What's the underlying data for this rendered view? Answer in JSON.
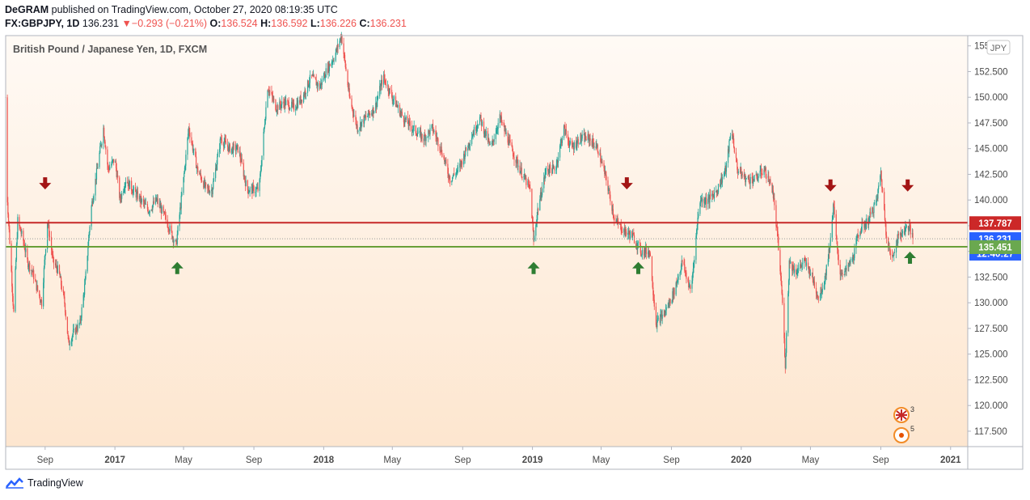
{
  "header": {
    "author": "DeGRAM",
    "published": " published on TradingView.com, October 27, 2020 08:19:35 UTC"
  },
  "quote": {
    "symbol": "FX:GBPJPY, 1D",
    "last": "136.231",
    "change_arrow": "▼",
    "change": "−0.293 (−0.21%)",
    "o_label": "O:",
    "o": "136.524",
    "h_label": "H:",
    "h": "136.592",
    "l_label": "L:",
    "l": "136.226",
    "c_label": "C:",
    "c": "136.231"
  },
  "footer": {
    "brand": "TradingView"
  },
  "chart_data": {
    "type": "candlestick",
    "title": "British Pound / Japanese Yen, 1D, FXCM",
    "currency_badge": "JPY",
    "ylim": [
      116,
      156
    ],
    "y_ticks": [
      117.5,
      120,
      122.5,
      125,
      127.5,
      130,
      132.5,
      135,
      137.5,
      140,
      142.5,
      145,
      147.5,
      150,
      152.5,
      155
    ],
    "y_tick_labels": [
      "117.500",
      "120.000",
      "122.500",
      "125.000",
      "127.500",
      "130.000",
      "132.500",
      "135.000",
      "137.500",
      "140.000",
      "142.500",
      "145.000",
      "147.500",
      "150.000",
      "152.500",
      "155.000"
    ],
    "x_tick_labels": [
      "Sep",
      "2017",
      "May",
      "Sep",
      "2018",
      "May",
      "Sep",
      "2019",
      "May",
      "Sep",
      "2020",
      "May",
      "Sep",
      "2021"
    ],
    "x_range": [
      "2016-06-24",
      "2021-01-31"
    ],
    "x_tick_dates": [
      "2016-09-01",
      "2017-01-01",
      "2017-05-01",
      "2017-09-01",
      "2018-01-01",
      "2018-05-01",
      "2018-09-01",
      "2019-01-01",
      "2019-05-01",
      "2019-09-01",
      "2020-01-01",
      "2020-05-01",
      "2020-09-01",
      "2021-01-01"
    ],
    "price_path": [
      [
        "2016-06-24",
        150
      ],
      [
        "2016-06-27",
        140
      ],
      [
        "2016-07-05",
        132
      ],
      [
        "2016-07-08",
        129
      ],
      [
        "2016-07-15",
        138
      ],
      [
        "2016-07-25",
        136
      ],
      [
        "2016-08-01",
        134
      ],
      [
        "2016-08-10",
        133
      ],
      [
        "2016-08-20",
        131
      ],
      [
        "2016-08-26",
        130
      ],
      [
        "2016-09-05",
        138
      ],
      [
        "2016-09-15",
        134
      ],
      [
        "2016-09-25",
        133
      ],
      [
        "2016-10-05",
        130
      ],
      [
        "2016-10-12",
        126
      ],
      [
        "2016-10-20",
        127
      ],
      [
        "2016-11-01",
        128
      ],
      [
        "2016-11-10",
        132
      ],
      [
        "2016-11-20",
        139
      ],
      [
        "2016-12-01",
        143
      ],
      [
        "2016-12-12",
        147
      ],
      [
        "2016-12-20",
        143
      ],
      [
        "2017-01-01",
        144
      ],
      [
        "2017-01-10",
        140
      ],
      [
        "2017-01-20",
        142
      ],
      [
        "2017-02-01",
        141
      ],
      [
        "2017-02-15",
        140
      ],
      [
        "2017-03-01",
        139
      ],
      [
        "2017-03-15",
        140
      ],
      [
        "2017-04-01",
        138
      ],
      [
        "2017-04-18",
        135.6
      ],
      [
        "2017-05-01",
        142
      ],
      [
        "2017-05-10",
        147
      ],
      [
        "2017-05-25",
        143
      ],
      [
        "2017-06-10",
        141
      ],
      [
        "2017-06-20",
        141
      ],
      [
        "2017-07-05",
        146
      ],
      [
        "2017-07-20",
        145
      ],
      [
        "2017-08-05",
        145
      ],
      [
        "2017-08-20",
        141
      ],
      [
        "2017-09-10",
        141
      ],
      [
        "2017-09-25",
        151
      ],
      [
        "2017-10-10",
        149
      ],
      [
        "2017-10-25",
        149.5
      ],
      [
        "2017-11-10",
        149
      ],
      [
        "2017-11-25",
        150
      ],
      [
        "2017-12-10",
        152
      ],
      [
        "2017-12-25",
        151
      ],
      [
        "2018-01-05",
        152.5
      ],
      [
        "2018-01-20",
        154
      ],
      [
        "2018-02-01",
        156
      ],
      [
        "2018-02-15",
        150
      ],
      [
        "2018-03-01",
        147
      ],
      [
        "2018-03-15",
        148
      ],
      [
        "2018-04-01",
        149
      ],
      [
        "2018-04-15",
        152
      ],
      [
        "2018-05-01",
        150
      ],
      [
        "2018-05-20",
        148
      ],
      [
        "2018-06-05",
        147
      ],
      [
        "2018-06-25",
        146
      ],
      [
        "2018-07-10",
        147
      ],
      [
        "2018-07-25",
        145
      ],
      [
        "2018-08-10",
        142
      ],
      [
        "2018-08-25",
        143
      ],
      [
        "2018-09-15",
        146
      ],
      [
        "2018-10-01",
        148
      ],
      [
        "2018-10-20",
        145
      ],
      [
        "2018-11-05",
        148
      ],
      [
        "2018-11-25",
        145
      ],
      [
        "2018-12-10",
        143
      ],
      [
        "2018-12-28",
        141
      ],
      [
        "2019-01-03",
        136
      ],
      [
        "2019-01-10",
        139
      ],
      [
        "2019-01-25",
        143
      ],
      [
        "2019-02-10",
        143
      ],
      [
        "2019-02-25",
        147
      ],
      [
        "2019-03-10",
        145
      ],
      [
        "2019-03-25",
        146
      ],
      [
        "2019-04-10",
        146
      ],
      [
        "2019-04-25",
        145
      ],
      [
        "2019-05-10",
        142
      ],
      [
        "2019-05-25",
        138
      ],
      [
        "2019-06-10",
        137
      ],
      [
        "2019-06-25",
        136.5
      ],
      [
        "2019-07-10",
        135
      ],
      [
        "2019-07-25",
        135
      ],
      [
        "2019-08-05",
        128
      ],
      [
        "2019-08-20",
        129
      ],
      [
        "2019-09-05",
        131
      ],
      [
        "2019-09-20",
        134
      ],
      [
        "2019-10-05",
        131
      ],
      [
        "2019-10-20",
        140
      ],
      [
        "2019-11-05",
        140
      ],
      [
        "2019-11-20",
        141
      ],
      [
        "2019-12-05",
        143
      ],
      [
        "2019-12-15",
        147
      ],
      [
        "2019-12-25",
        143
      ],
      [
        "2020-01-10",
        142
      ],
      [
        "2020-01-25",
        142
      ],
      [
        "2020-02-10",
        143
      ],
      [
        "2020-02-25",
        141
      ],
      [
        "2020-03-05",
        136
      ],
      [
        "2020-03-12",
        131
      ],
      [
        "2020-03-18",
        124
      ],
      [
        "2020-03-25",
        134
      ],
      [
        "2020-04-05",
        133
      ],
      [
        "2020-04-20",
        134
      ],
      [
        "2020-05-01",
        133
      ],
      [
        "2020-05-15",
        130.5
      ],
      [
        "2020-05-25",
        132
      ],
      [
        "2020-06-05",
        136
      ],
      [
        "2020-06-10",
        139.7
      ],
      [
        "2020-06-20",
        133
      ],
      [
        "2020-07-01",
        133
      ],
      [
        "2020-07-15",
        134.5
      ],
      [
        "2020-07-25",
        137
      ],
      [
        "2020-08-10",
        138
      ],
      [
        "2020-08-25",
        140
      ],
      [
        "2020-09-01",
        142.7
      ],
      [
        "2020-09-10",
        137
      ],
      [
        "2020-09-20",
        134
      ],
      [
        "2020-09-28",
        136
      ],
      [
        "2020-10-10",
        137
      ],
      [
        "2020-10-20",
        137.5
      ],
      [
        "2020-10-27",
        136.231
      ]
    ],
    "horizontal_lines": [
      {
        "name": "resistance",
        "value": 137.787,
        "color": "#c62828"
      },
      {
        "name": "support",
        "value": 135.451,
        "color": "#689f38"
      },
      {
        "name": "last-price",
        "value": 136.231,
        "color": "#999999"
      }
    ],
    "price_labels": [
      {
        "text": "137.787",
        "value": 137.787,
        "color": "#cc2828"
      },
      {
        "text": "136.231",
        "value": 136.231,
        "color": "#2962ff"
      },
      {
        "text": "12:40:27",
        "value": 136.231,
        "color": "#2962ff",
        "offset": 1
      },
      {
        "text": "135.451",
        "value": 135.451,
        "color": "#6aa84f"
      }
    ],
    "arrows_down": [
      [
        "2016-09-01",
        141.5
      ],
      [
        "2019-06-15",
        141.5
      ],
      [
        "2020-06-05",
        141.3
      ],
      [
        "2020-10-18",
        141.3
      ]
    ],
    "arrows_up": [
      [
        "2017-04-20",
        133.5
      ],
      [
        "2019-01-03",
        133.5
      ],
      [
        "2019-07-05",
        133.5
      ],
      [
        "2020-10-22",
        134.5
      ]
    ],
    "colors": {
      "up": "#26a69a",
      "down": "#ef5350",
      "arrow_down": "#a31515",
      "arrow_up": "#2e7d32",
      "bg_top": "#fffaf5",
      "bg_bottom": "#fde6cf"
    },
    "event_badges": [
      {
        "icon": "uk-flag-icon",
        "count": "3"
      },
      {
        "icon": "earnings-icon",
        "count": "5"
      }
    ]
  }
}
